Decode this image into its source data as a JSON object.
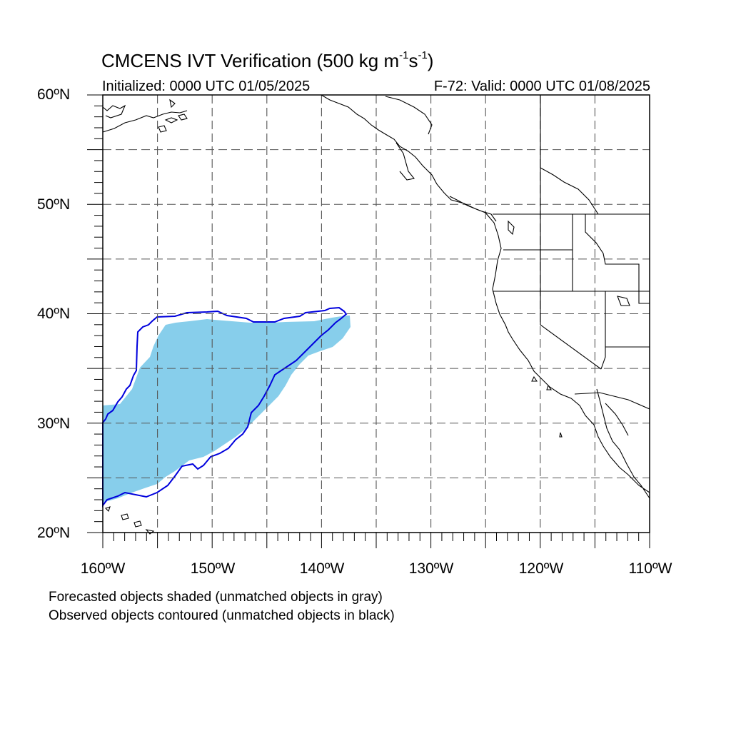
{
  "title": {
    "main": "CMCENS IVT Verification (500 kg m",
    "exp1": "-1",
    "mid": "s",
    "exp2": "-1",
    "close": ")"
  },
  "subtitle": {
    "initialized": "Initialized: 0000 UTC 01/05/2025",
    "valid": "F-72: Valid: 0000 UTC 01/08/2025"
  },
  "axes": {
    "lat_labels": [
      "60ºN",
      "50ºN",
      "40ºN",
      "30ºN",
      "20ºN"
    ],
    "lon_labels": [
      "160ºW",
      "150ºW",
      "140ºW",
      "130ºW",
      "120ºW",
      "110ºW"
    ],
    "lat_range": [
      20,
      60
    ],
    "lon_range": [
      -160,
      -110
    ]
  },
  "legend": {
    "line1": "Forecasted objects shaded (unmatched objects in gray)",
    "line2": "Observed objects contoured (unmatched objects in black)"
  },
  "colors": {
    "forecast_fill": "#87ceeb",
    "observed_contour": "#0000dd",
    "coastline": "#000000",
    "grid": "#000000"
  }
}
